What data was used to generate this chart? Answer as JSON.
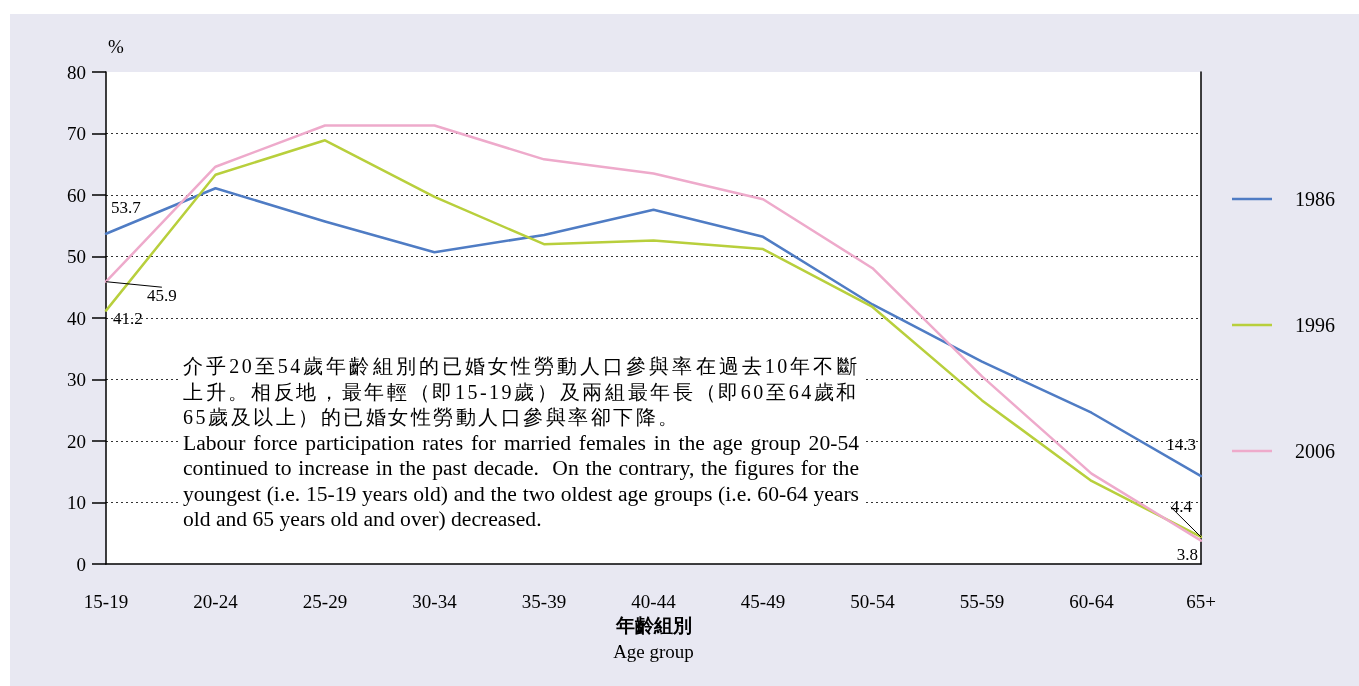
{
  "chart_data": {
    "type": "line",
    "xlabel": "年齡組別\nAge group",
    "ylabel": "%",
    "categories": [
      "15-19",
      "20-24",
      "25-29",
      "30-34",
      "35-39",
      "40-44",
      "45-49",
      "50-54",
      "55-59",
      "60-64",
      "65+"
    ],
    "series": [
      {
        "name": "1986",
        "color": "#4f7cc4",
        "values": [
          53.7,
          61.1,
          55.7,
          50.7,
          53.5,
          57.6,
          53.2,
          42.2,
          32.9,
          24.6,
          14.3
        ],
        "value_labels": [
          "53.7",
          null,
          null,
          null,
          null,
          null,
          null,
          null,
          null,
          null,
          "14.3"
        ]
      },
      {
        "name": "1996",
        "color": "#b8cf3c",
        "values": [
          41.2,
          63.3,
          68.9,
          59.7,
          52.0,
          52.6,
          51.2,
          41.8,
          26.6,
          13.5,
          4.4
        ],
        "value_labels": [
          "41.2",
          null,
          null,
          null,
          null,
          null,
          null,
          null,
          null,
          null,
          "4.4"
        ]
      },
      {
        "name": "2006",
        "color": "#eeaacb",
        "values": [
          45.9,
          64.6,
          71.3,
          71.3,
          65.8,
          63.5,
          59.3,
          48.1,
          30.5,
          14.7,
          3.8
        ],
        "value_labels": [
          "45.9",
          null,
          null,
          null,
          null,
          null,
          null,
          null,
          null,
          null,
          "3.8"
        ]
      }
    ],
    "ylim": [
      0,
      80
    ],
    "yticks": [
      0,
      10,
      20,
      30,
      40,
      50,
      60,
      70,
      80
    ],
    "grid": "y",
    "legend": "right",
    "marker": "none",
    "line_style": "solid",
    "annotations": [
      "介乎20至54歲年齡組別的已婚女性勞動人口參與率在過去10年不斷上升。相反地，最年輕（即15-19歲）及兩組最年長（即60至64歲和65歲及以上）的已婚女性勞動人口參與率卻下降。",
      "Labour force participation rates for married females in the age group 20-54 continued to increase in the past decade.  On the contrary, the figures for the youngest (i.e. 15-19 years old) and the two oldest age groups (i.e. 60-64 years old and 65 years old and over) decreased."
    ]
  }
}
